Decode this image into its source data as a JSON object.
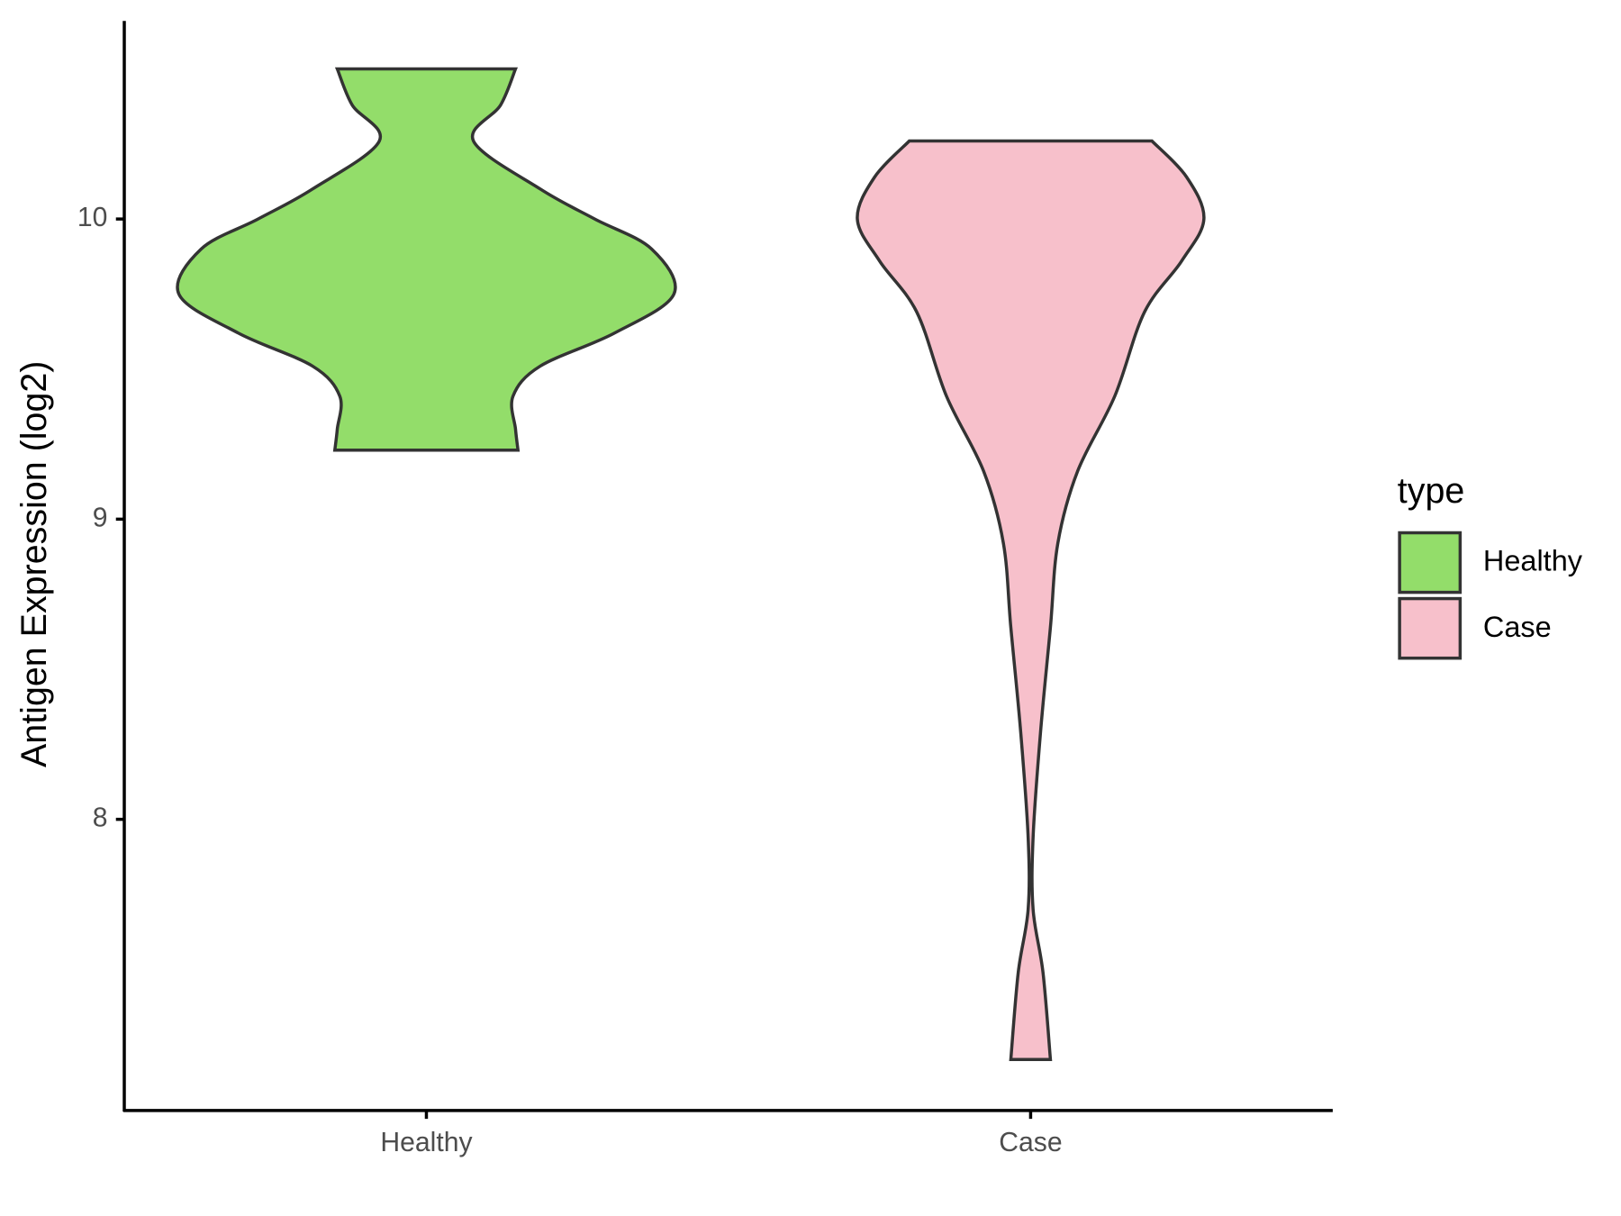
{
  "chart_data": {
    "type": "violin",
    "y_label": "Antigen Expression (log2)",
    "categories": [
      "Healthy",
      "Case"
    ],
    "ylim": [
      7.03,
      10.66
    ],
    "yticks": [
      8,
      9,
      10
    ],
    "legend_title": "type",
    "legend_position": "right",
    "series": [
      {
        "name": "Healthy",
        "color": "#93dd6a",
        "y": [
          10.5,
          10.38,
          10.26,
          10.1,
          10.0,
          9.9,
          9.75,
          9.62,
          9.51,
          9.41,
          9.3,
          9.23
        ],
        "widths": [
          0.36,
          0.3,
          0.19,
          0.46,
          0.68,
          0.91,
          1.0,
          0.76,
          0.46,
          0.35,
          0.36,
          0.37
        ]
      },
      {
        "name": "Case",
        "color": "#f7c0cb",
        "y": [
          10.26,
          10.14,
          10.0,
          9.86,
          9.69,
          9.41,
          9.16,
          8.92,
          8.64,
          8.29,
          7.94,
          7.7,
          7.49,
          7.2
        ],
        "widths": [
          0.49,
          0.63,
          0.7,
          0.61,
          0.46,
          0.34,
          0.19,
          0.11,
          0.08,
          0.04,
          0.01,
          0.01,
          0.05,
          0.08
        ]
      }
    ]
  }
}
